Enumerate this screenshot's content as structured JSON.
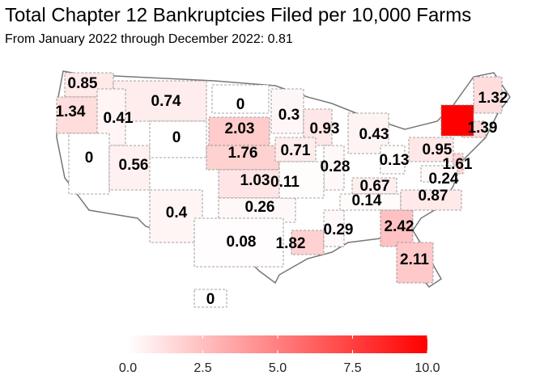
{
  "chart_data": {
    "type": "choropleth",
    "title": "Total Chapter 12 Bankruptcies Filed per 10,000 Farms",
    "subtitle": "From January 2022 through December 2022: 0.81",
    "values": [
      0.85,
      1.34,
      0.74,
      0,
      0.41,
      0,
      0.56,
      0,
      2.03,
      1.76,
      1.03,
      0.26,
      0.4,
      0.08,
      1.82,
      0.29,
      0.3,
      0.93,
      0.71,
      0.43,
      0.28,
      0.11,
      0.13,
      0.67,
      0.14,
      2.42,
      2.11,
      0.95,
      1.61,
      0.24,
      0.87,
      1.32,
      1.39,
      10,
      0
    ],
    "value_labels": [
      "0.85",
      "1.34",
      "0.74",
      "0",
      "0.41",
      "0",
      "0.56",
      "0",
      "2.03",
      "1.76",
      "1.03",
      "0.26",
      "0.4",
      "0.08",
      "1.82",
      "0.29",
      "0.3",
      "0.93",
      "0.71",
      "0.43",
      "0.28",
      "0.11",
      "0.13",
      "0.67",
      "0.14",
      "2.42",
      "2.11",
      "0.95",
      "1.61",
      "0.24",
      "0.87",
      "1.32",
      "1.39",
      null,
      "0"
    ],
    "colorbar": {
      "lim": [
        0,
        10
      ],
      "low_color": "#ffffff",
      "high_color": "#ff0000",
      "ticks": [
        {
          "value": 0,
          "label": "0.0"
        },
        {
          "value": 2.5,
          "label": "2.5"
        },
        {
          "value": 5,
          "label": "5.0"
        },
        {
          "value": 7.5,
          "label": "7.5"
        },
        {
          "value": 10,
          "label": "10.0"
        }
      ]
    }
  }
}
